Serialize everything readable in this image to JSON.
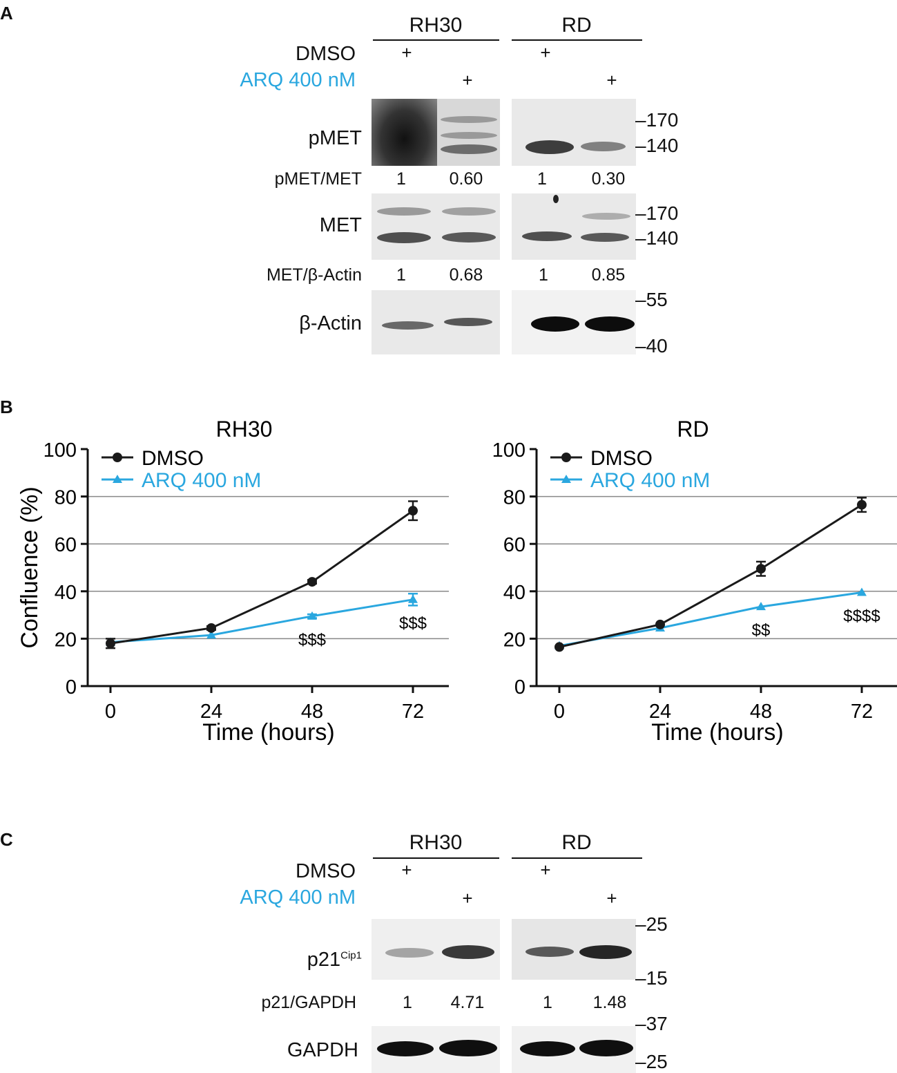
{
  "panelA": {
    "letter": "A",
    "cell_lines": [
      "RH30",
      "RD"
    ],
    "treatments": {
      "dmso": "DMSO",
      "arq": "ARQ 400 nM"
    },
    "plus": "+",
    "rows": {
      "pmet": "pMET",
      "pmet_ratio_label": "pMET/MET",
      "met": "MET",
      "met_ratio_label": "MET/β-Actin",
      "actin": "β-Actin"
    },
    "pmet_ratios": [
      "1",
      "0.60",
      "1",
      "0.30"
    ],
    "met_ratios": [
      "1",
      "0.68",
      "1",
      "0.85"
    ],
    "markers": {
      "pmet": [
        "170",
        "140"
      ],
      "met": [
        "170",
        "140"
      ],
      "actin": [
        "55",
        "40"
      ]
    }
  },
  "panelB": {
    "letter": "B",
    "color_dmso": "#1a1a1a",
    "color_arq": "#2aa7df"
  },
  "chart_data": [
    {
      "type": "line",
      "title": "RH30",
      "xlabel": "Time (hours)",
      "ylabel": "Confluence (%)",
      "x": [
        0,
        24,
        48,
        72
      ],
      "ylim": [
        0,
        100
      ],
      "yticks": [
        "0",
        "20",
        "40",
        "60",
        "80",
        "100"
      ],
      "xticks": [
        "0",
        "24",
        "48",
        "72"
      ],
      "grid": true,
      "legend": "top-left",
      "series": [
        {
          "name": "DMSO",
          "values": [
            18,
            24.5,
            44,
            74
          ],
          "errors": [
            2,
            0.8,
            0.8,
            4
          ]
        },
        {
          "name": "ARQ 400 nM",
          "values": [
            18.5,
            21.5,
            29.5,
            36.5
          ],
          "errors": [
            0.5,
            0.5,
            0.8,
            2.5
          ]
        }
      ],
      "annotations": [
        {
          "x": 48,
          "text": "$$$"
        },
        {
          "x": 72,
          "text": "$$$"
        }
      ]
    },
    {
      "type": "line",
      "title": "RD",
      "xlabel": "Time (hours)",
      "ylabel": "",
      "x": [
        0,
        24,
        48,
        72
      ],
      "ylim": [
        0,
        100
      ],
      "yticks": [
        "0",
        "20",
        "40",
        "60",
        "80",
        "100"
      ],
      "xticks": [
        "0",
        "24",
        "48",
        "72"
      ],
      "grid": true,
      "legend": "top-left",
      "series": [
        {
          "name": "DMSO",
          "values": [
            16.5,
            26,
            49.5,
            76.5
          ],
          "errors": [
            0.5,
            0.5,
            3,
            3
          ]
        },
        {
          "name": "ARQ 400 nM",
          "values": [
            17,
            24.5,
            33.5,
            39.5
          ],
          "errors": [
            0.5,
            0.5,
            0.5,
            0.5
          ]
        }
      ],
      "annotations": [
        {
          "x": 48,
          "text": "$$"
        },
        {
          "x": 72,
          "text": "$$$$"
        }
      ]
    }
  ],
  "panelC": {
    "letter": "C",
    "cell_lines": [
      "RH30",
      "RD"
    ],
    "treatments": {
      "dmso": "DMSO",
      "arq": "ARQ 400 nM"
    },
    "plus": "+",
    "rows": {
      "p21": "p21",
      "p21_sup": "Cip1",
      "p21_ratio_label": "p21/GAPDH",
      "gapdh": "GAPDH"
    },
    "p21_ratios": [
      "1",
      "4.71",
      "1",
      "1.48"
    ],
    "markers": {
      "p21": [
        "25",
        "15"
      ],
      "gapdh": [
        "37",
        "25"
      ]
    }
  }
}
